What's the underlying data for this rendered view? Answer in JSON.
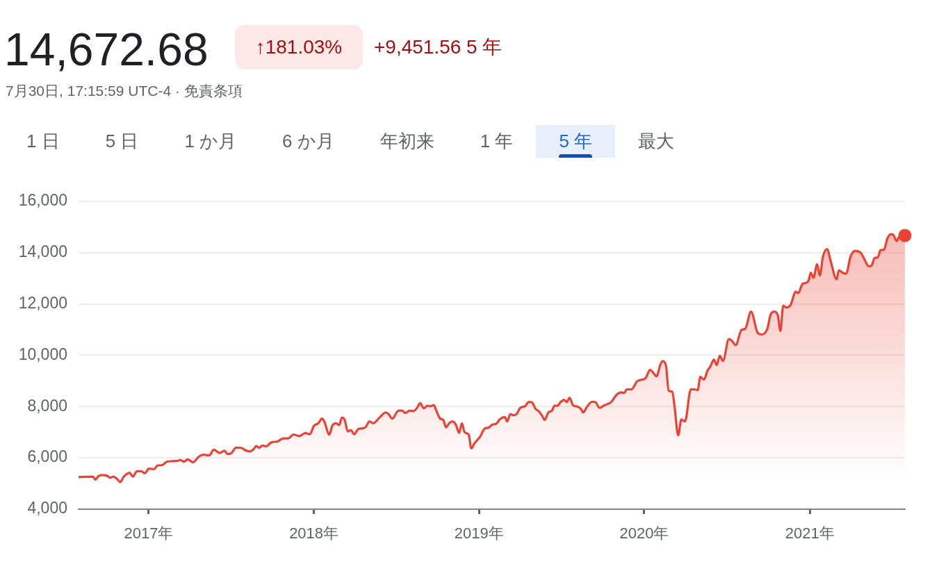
{
  "chart_data": {
    "type": "area",
    "title": "14,672.68",
    "subtitle": "7月30日, 17:15:59 UTC-4 · 免責条項",
    "annotations": [
      "↑181.03%",
      "+9,451.56 5 年",
      "1 日",
      "5 日",
      "1 か月",
      "6 か月",
      "年初来",
      "1 年",
      "5 年",
      "最大"
    ],
    "xlim": [
      "2016-07-30",
      "2021-07-30"
    ],
    "xticks": [
      {
        "value": "2017-01-01",
        "label": "2017年"
      },
      {
        "value": "2018-01-01",
        "label": "2018年"
      },
      {
        "value": "2019-01-01",
        "label": "2019年"
      },
      {
        "value": "2020-01-01",
        "label": "2020年"
      },
      {
        "value": "2021-01-01",
        "label": "2021年"
      }
    ],
    "ylim": [
      4000,
      16000
    ],
    "yticks": [
      {
        "value": 4000,
        "label": "4,000"
      },
      {
        "value": 6000,
        "label": "6,000"
      },
      {
        "value": 8000,
        "label": "8,000"
      },
      {
        "value": 10000,
        "label": "10,000"
      },
      {
        "value": 12000,
        "label": "12,000"
      },
      {
        "value": 14000,
        "label": "14,000"
      },
      {
        "value": 16000,
        "label": "16,000"
      }
    ],
    "grid": "y",
    "series": [
      {
        "color": "#ea4335",
        "x": [
          "2016-07-30",
          "2016-08-15",
          "2016-08-31",
          "2016-09-05",
          "2016-09-12",
          "2016-09-20",
          "2016-09-30",
          "2016-10-08",
          "2016-10-15",
          "2016-10-23",
          "2016-10-30",
          "2016-11-07",
          "2016-11-20",
          "2016-11-27",
          "2016-12-06",
          "2016-12-16",
          "2016-12-23",
          "2017-01-02",
          "2017-01-13",
          "2017-01-20",
          "2017-01-31",
          "2017-02-10",
          "2017-02-22",
          "2017-03-07",
          "2017-03-12",
          "2017-03-20",
          "2017-03-28",
          "2017-04-09",
          "2017-04-22",
          "2017-05-02",
          "2017-05-15",
          "2017-05-25",
          "2017-06-07",
          "2017-06-17",
          "2017-06-25",
          "2017-07-03",
          "2017-07-13",
          "2017-07-25",
          "2017-08-02",
          "2017-08-12",
          "2017-08-20",
          "2017-08-27",
          "2017-09-02",
          "2017-09-09",
          "2017-09-17",
          "2017-09-30",
          "2017-10-13",
          "2017-10-25",
          "2017-11-05",
          "2017-11-17",
          "2017-11-30",
          "2017-12-13",
          "2017-12-23",
          "2018-01-01",
          "2018-01-11",
          "2018-01-19",
          "2018-01-24",
          "2018-02-04",
          "2018-02-11",
          "2018-02-19",
          "2018-02-26",
          "2018-03-04",
          "2018-03-10",
          "2018-03-17",
          "2018-03-24",
          "2018-03-31",
          "2018-04-09",
          "2018-04-19",
          "2018-04-25",
          "2018-05-04",
          "2018-05-12",
          "2018-05-25",
          "2018-06-09",
          "2018-06-15",
          "2018-06-23",
          "2018-07-07",
          "2018-07-15",
          "2018-07-22",
          "2018-08-01",
          "2018-08-09",
          "2018-08-17",
          "2018-08-24",
          "2018-09-01",
          "2018-09-09",
          "2018-09-16",
          "2018-09-23",
          "2018-09-29",
          "2018-10-07",
          "2018-10-14",
          "2018-10-20",
          "2018-10-27",
          "2018-11-04",
          "2018-11-11",
          "2018-11-18",
          "2018-11-24",
          "2018-11-30",
          "2018-12-09",
          "2018-12-15",
          "2018-12-22",
          "2019-01-03",
          "2019-01-14",
          "2019-01-21",
          "2019-01-31",
          "2019-02-08",
          "2019-02-16",
          "2019-02-27",
          "2019-03-04",
          "2019-03-11",
          "2019-03-18",
          "2019-03-25",
          "2019-04-02",
          "2019-04-13",
          "2019-04-21",
          "2019-04-28",
          "2019-05-06",
          "2019-05-14",
          "2019-05-21",
          "2019-05-26",
          "2019-06-03",
          "2019-06-11",
          "2019-06-17",
          "2019-06-23",
          "2019-07-01",
          "2019-07-08",
          "2019-07-14",
          "2019-07-20",
          "2019-07-28",
          "2019-08-06",
          "2019-08-14",
          "2019-08-19",
          "2019-08-27",
          "2019-09-08",
          "2019-09-16",
          "2019-09-24",
          "2019-10-04",
          "2019-10-12",
          "2019-10-19",
          "2019-11-01",
          "2019-11-11",
          "2019-11-18",
          "2019-11-23",
          "2019-12-04",
          "2019-12-16",
          "2019-12-27",
          "2020-01-04",
          "2020-01-14",
          "2020-01-22",
          "2020-01-28",
          "2020-02-06",
          "2020-02-11",
          "2020-02-18",
          "2020-02-24",
          "2020-03-03",
          "2020-03-08",
          "2020-03-16",
          "2020-03-23",
          "2020-03-31",
          "2020-04-13",
          "2020-04-20",
          "2020-04-28",
          "2020-05-04",
          "2020-05-12",
          "2020-05-20",
          "2020-05-26",
          "2020-06-03",
          "2020-06-09",
          "2020-06-16",
          "2020-06-23",
          "2020-07-06",
          "2020-07-14",
          "2020-07-21",
          "2020-08-03",
          "2020-08-11",
          "2020-08-24",
          "2020-09-08",
          "2020-09-16",
          "2020-09-29",
          "2020-10-06",
          "2020-10-14",
          "2020-10-22",
          "2020-10-28",
          "2020-11-03",
          "2020-11-11",
          "2020-11-19",
          "2020-12-01",
          "2020-12-06",
          "2020-12-16",
          "2020-12-26",
          "2020-12-30",
          "2021-01-03",
          "2021-01-09",
          "2021-01-17",
          "2021-01-23",
          "2021-01-30",
          "2021-02-08",
          "2021-02-16",
          "2021-03-01",
          "2021-03-06",
          "2021-03-14",
          "2021-03-22",
          "2021-04-01",
          "2021-04-11",
          "2021-04-24",
          "2021-05-01",
          "2021-05-11",
          "2021-05-17",
          "2021-05-24",
          "2021-05-31",
          "2021-06-06",
          "2021-06-14",
          "2021-06-21",
          "2021-06-29",
          "2021-07-04",
          "2021-07-12",
          "2021-07-17",
          "2021-07-30"
        ],
        "values": [
          5250,
          5260,
          5270,
          5150,
          5290,
          5330,
          5310,
          5230,
          5270,
          5180,
          5060,
          5270,
          5420,
          5270,
          5480,
          5480,
          5400,
          5580,
          5560,
          5700,
          5720,
          5850,
          5870,
          5890,
          5920,
          5850,
          5940,
          5830,
          6050,
          6120,
          6100,
          6320,
          6190,
          6280,
          6150,
          6190,
          6400,
          6390,
          6300,
          6250,
          6320,
          6460,
          6390,
          6480,
          6450,
          6610,
          6640,
          6760,
          6760,
          6910,
          6850,
          6970,
          6920,
          7240,
          7350,
          7530,
          7420,
          6910,
          7260,
          7350,
          7280,
          7570,
          7480,
          7030,
          7080,
          6920,
          7120,
          7150,
          7190,
          7420,
          7350,
          7550,
          7770,
          7710,
          7530,
          7840,
          7840,
          7750,
          7840,
          7820,
          7950,
          8130,
          7930,
          8030,
          8010,
          8060,
          7820,
          7530,
          7480,
          7190,
          7350,
          7420,
          7280,
          6970,
          7350,
          7000,
          6910,
          6370,
          6570,
          6820,
          7150,
          7170,
          7300,
          7330,
          7510,
          7590,
          7420,
          7710,
          7660,
          7710,
          7950,
          8020,
          8180,
          8160,
          7910,
          7800,
          7620,
          7480,
          7770,
          7840,
          8040,
          8030,
          8190,
          8260,
          8180,
          8340,
          8040,
          8000,
          7910,
          7770,
          7980,
          8190,
          8160,
          7950,
          8040,
          8100,
          8160,
          8460,
          8550,
          8530,
          8670,
          8670,
          8980,
          9050,
          9110,
          9430,
          9290,
          9180,
          9650,
          9770,
          9600,
          8620,
          8580,
          8000,
          6880,
          7500,
          7420,
          8670,
          8670,
          8640,
          9160,
          9050,
          9410,
          9560,
          9830,
          9620,
          9980,
          9780,
          10630,
          10540,
          10390,
          10990,
          11030,
          11700,
          10860,
          10810,
          11030,
          11570,
          11700,
          11570,
          10950,
          11930,
          11860,
          11950,
          12480,
          12420,
          12780,
          12840,
          12960,
          13220,
          13020,
          13550,
          13110,
          13850,
          14140,
          13670,
          12960,
          13310,
          13220,
          13180,
          13850,
          14070,
          13980,
          13760,
          13470,
          13490,
          13790,
          13820,
          14090,
          14120,
          14540,
          14720,
          14700,
          14450,
          14610,
          14670
        ]
      },
      {
        "type": "scatter",
        "color": "#ea4335",
        "marker": "circle",
        "x": [
          "2021-07-30"
        ],
        "values": [
          14670
        ]
      }
    ]
  }
}
